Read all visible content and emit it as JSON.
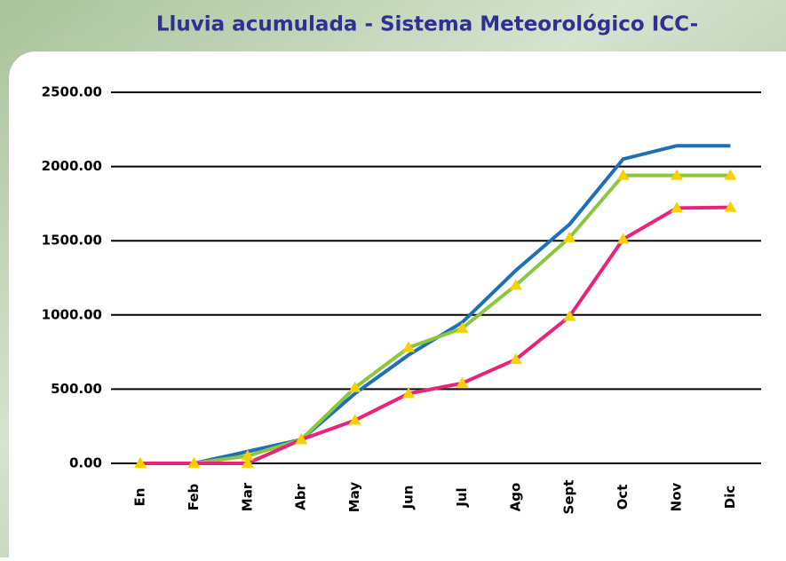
{
  "chart_data": {
    "type": "line",
    "title": "Lluvia acumulada - Sistema Meteorológico ICC-",
    "categories": [
      "En",
      "Feb",
      "Mar",
      "Abr",
      "May",
      "Jun",
      "Jul",
      "Ago",
      "Sept",
      "Oct",
      "Nov",
      "Dic"
    ],
    "series": [
      {
        "color": "#1f6fb8",
        "values": [
          0,
          0,
          80,
          160,
          470,
          730,
          950,
          1300,
          1610,
          2050,
          2140,
          2140
        ]
      },
      {
        "color": "#8cc63f",
        "marker": true,
        "values": [
          0,
          0,
          50,
          160,
          510,
          780,
          910,
          1200,
          1520,
          1940,
          1940,
          1940
        ]
      },
      {
        "color": "#e8237a",
        "marker": true,
        "values": [
          0,
          0,
          0,
          160,
          290,
          470,
          540,
          700,
          990,
          1510,
          1720,
          1725
        ]
      }
    ],
    "marker_color": "#f7d000",
    "ylim": [
      0,
      2500
    ],
    "yticks": [
      {
        "value": 0,
        "label": "0.00"
      },
      {
        "value": 500,
        "label": "500.00"
      },
      {
        "value": 1000,
        "label": "1000.00"
      },
      {
        "value": 1500,
        "label": "1500.00"
      },
      {
        "value": 2000,
        "label": "2000.00"
      },
      {
        "value": 2500,
        "label": "2500.00"
      }
    ],
    "grid": true
  }
}
